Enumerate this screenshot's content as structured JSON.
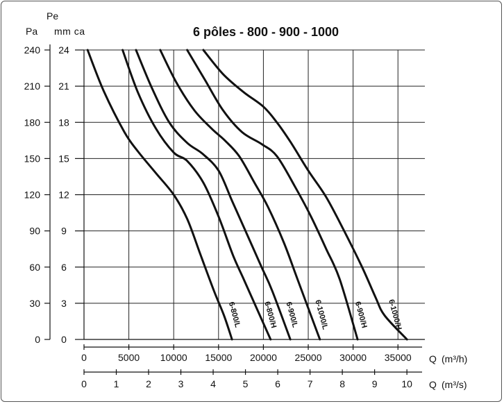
{
  "chart_data": {
    "type": "line",
    "title": "6 pôles - 800 - 900 - 1000",
    "y_axis_left": {
      "unit_label": "Pa",
      "ticks": [
        0,
        30,
        60,
        90,
        120,
        150,
        180,
        210,
        240
      ],
      "range": [
        0,
        240
      ]
    },
    "y_axis_right": {
      "name": "Pe",
      "unit_label": "mm ca",
      "ticks": [
        0,
        3,
        6,
        9,
        12,
        15,
        18,
        21,
        24
      ],
      "range": [
        0,
        24
      ]
    },
    "x_axis_primary": {
      "label": "Q",
      "unit": "(m³/h)",
      "ticks": [
        0,
        5000,
        10000,
        15000,
        20000,
        25000,
        30000,
        35000
      ],
      "range": [
        0,
        38000
      ]
    },
    "x_axis_secondary": {
      "label": "Q",
      "unit": "(m³/s)",
      "ticks": [
        0,
        1,
        2,
        3,
        4,
        5,
        6,
        7,
        8,
        9,
        10
      ],
      "range": [
        0,
        10.556
      ]
    },
    "grid": true,
    "series": [
      {
        "name": "6-800/L",
        "points": [
          [
            400,
            24
          ],
          [
            2200,
            20.6
          ],
          [
            4500,
            17.2
          ],
          [
            6000,
            15.6
          ],
          [
            8000,
            13.8
          ],
          [
            10000,
            12
          ],
          [
            11500,
            10
          ],
          [
            13000,
            7
          ],
          [
            14500,
            4
          ],
          [
            15600,
            2
          ],
          [
            16500,
            0
          ]
        ]
      },
      {
        "name": "6-800/H",
        "points": [
          [
            4300,
            24
          ],
          [
            6000,
            20.5
          ],
          [
            8000,
            17.5
          ],
          [
            10000,
            15.5
          ],
          [
            11500,
            14.8
          ],
          [
            13300,
            13
          ],
          [
            15000,
            10.2
          ],
          [
            16600,
            7
          ],
          [
            17800,
            5
          ],
          [
            19000,
            3
          ],
          [
            20800,
            0
          ]
        ]
      },
      {
        "name": "6-900/L",
        "points": [
          [
            5800,
            24
          ],
          [
            7600,
            20.8
          ],
          [
            9500,
            18
          ],
          [
            11500,
            16.3
          ],
          [
            13200,
            15.4
          ],
          [
            15000,
            14
          ],
          [
            16500,
            11.5
          ],
          [
            18000,
            9
          ],
          [
            19800,
            6
          ],
          [
            21000,
            4
          ],
          [
            23000,
            0
          ]
        ]
      },
      {
        "name": "6-1000/L",
        "points": [
          [
            8500,
            24
          ],
          [
            10300,
            21.3
          ],
          [
            12300,
            19
          ],
          [
            14200,
            17.5
          ],
          [
            15700,
            16.5
          ],
          [
            17300,
            15.2
          ],
          [
            19000,
            13
          ],
          [
            20500,
            11
          ],
          [
            22300,
            8
          ],
          [
            23800,
            5
          ],
          [
            26300,
            0
          ]
        ]
      },
      {
        "name": "6-900/H",
        "points": [
          [
            11500,
            24
          ],
          [
            13500,
            21.5
          ],
          [
            15500,
            19
          ],
          [
            17600,
            17.2
          ],
          [
            19800,
            16.2
          ],
          [
            21500,
            15.2
          ],
          [
            23500,
            12.7
          ],
          [
            25300,
            10.2
          ],
          [
            27000,
            7.5
          ],
          [
            28500,
            5
          ],
          [
            30500,
            0
          ]
        ]
      },
      {
        "name": "6-1000/H",
        "points": [
          [
            13300,
            24
          ],
          [
            15500,
            22
          ],
          [
            17800,
            20.5
          ],
          [
            20000,
            19.3
          ],
          [
            21500,
            18
          ],
          [
            23000,
            16.4
          ],
          [
            25000,
            14
          ],
          [
            27000,
            11.8
          ],
          [
            29000,
            9
          ],
          [
            31000,
            6
          ],
          [
            32500,
            3.5
          ],
          [
            33500,
            2
          ],
          [
            36000,
            0
          ]
        ]
      }
    ]
  }
}
